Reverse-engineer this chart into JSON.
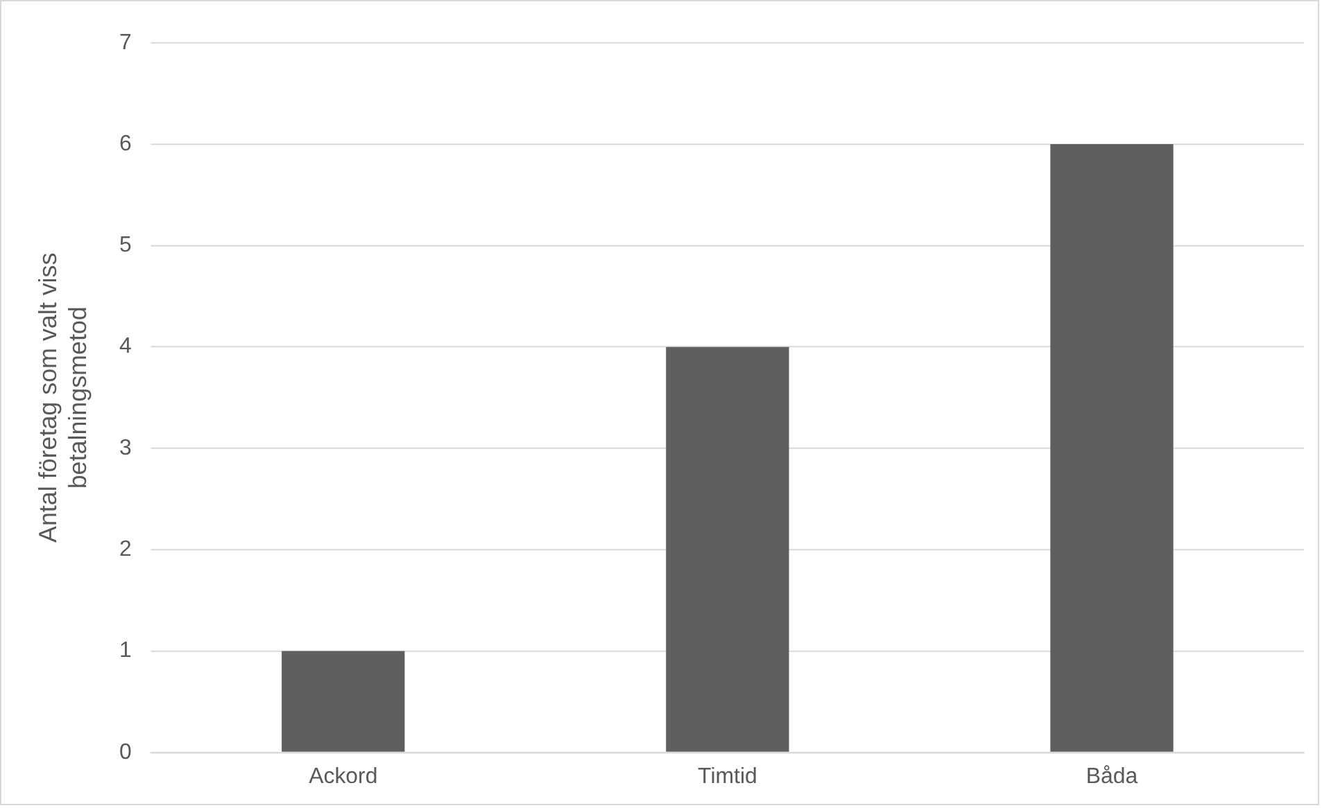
{
  "chart_data": {
    "type": "bar",
    "ylabel": "Antal företag som valt viss betalningsmetod",
    "categories": [
      "Ackord",
      "Timtid",
      "Båda"
    ],
    "values": [
      1,
      4,
      6
    ],
    "color": "#5f5f5f",
    "ylim": [
      0,
      7
    ],
    "yticks": [
      0,
      1,
      2,
      3,
      4,
      5,
      6,
      7
    ],
    "grid": "y",
    "legend": false
  }
}
